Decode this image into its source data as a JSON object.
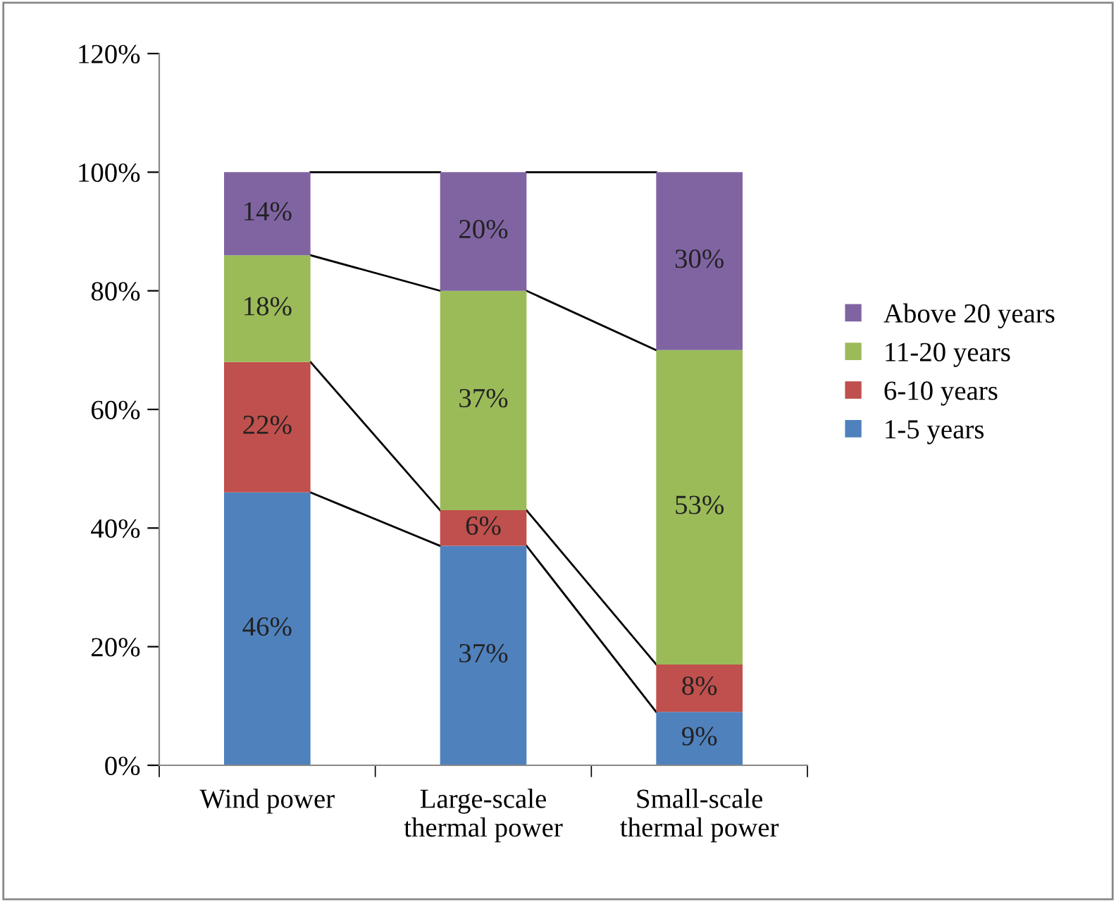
{
  "chart_data": {
    "type": "bar",
    "stacked": true,
    "categories": [
      "Wind power",
      "Large-scale\nthermal power",
      "Small-scale\nthermal power"
    ],
    "series": [
      {
        "name": "1-5 years",
        "color": "#4f81bd",
        "values": [
          46,
          37,
          9
        ],
        "value_labels": [
          "46%",
          "37%",
          "9%"
        ]
      },
      {
        "name": "6-10 years",
        "color": "#c0504d",
        "values": [
          22,
          6,
          8
        ],
        "value_labels": [
          "22%",
          "6%",
          "8%"
        ]
      },
      {
        "name": "11-20 years",
        "color": "#9bbb59",
        "values": [
          18,
          37,
          53
        ],
        "value_labels": [
          "18%",
          "37%",
          "53%"
        ]
      },
      {
        "name": "Above 20 years",
        "color": "#8064a2",
        "values": [
          14,
          20,
          30
        ],
        "value_labels": [
          "14%",
          "20%",
          "30%"
        ]
      }
    ],
    "ylim": [
      0,
      120
    ],
    "yticks": [
      {
        "value": 0,
        "label": "0%"
      },
      {
        "value": 20,
        "label": "20%"
      },
      {
        "value": 40,
        "label": "40%"
      },
      {
        "value": 60,
        "label": "60%"
      },
      {
        "value": 80,
        "label": "80%"
      },
      {
        "value": 100,
        "label": "100%"
      },
      {
        "value": 120,
        "label": "120%"
      }
    ],
    "grid": false,
    "legend": "right"
  }
}
